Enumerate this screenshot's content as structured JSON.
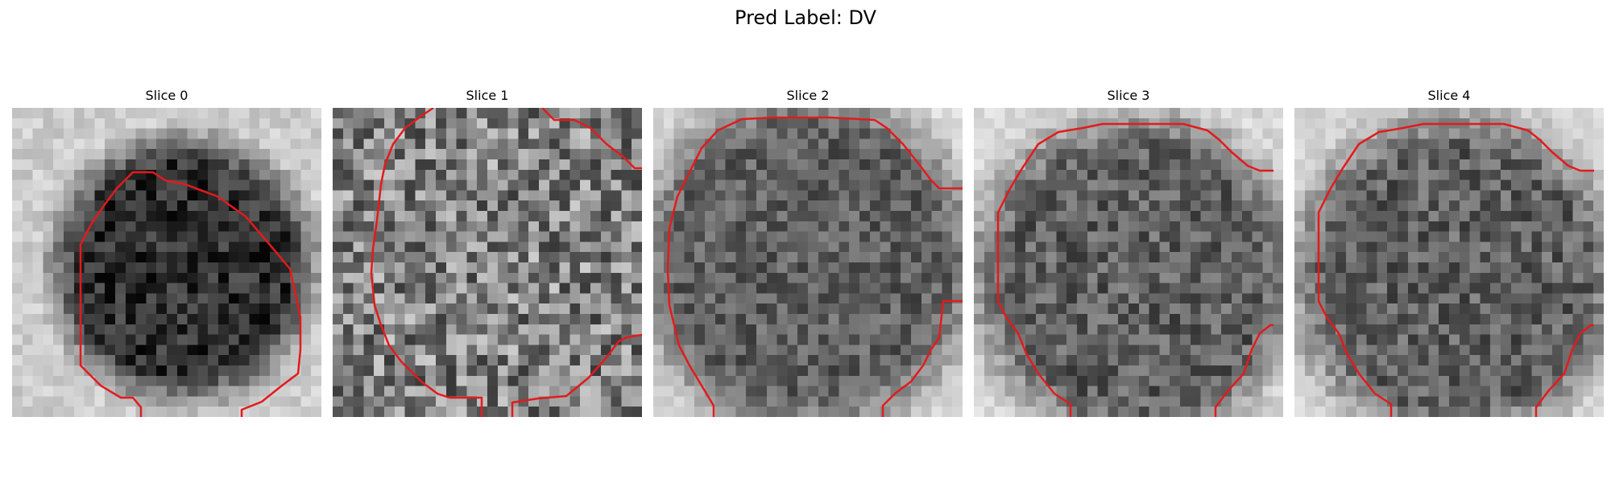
{
  "figure": {
    "title": "Pred Label: DV",
    "contour_color": "#e31a1c",
    "colormap": "grayscale"
  },
  "panels": [
    {
      "title": "Slice 0"
    },
    {
      "title": "Slice 1"
    },
    {
      "title": "Slice 2"
    },
    {
      "title": "Slice 3"
    },
    {
      "title": "Slice 4"
    }
  ]
}
